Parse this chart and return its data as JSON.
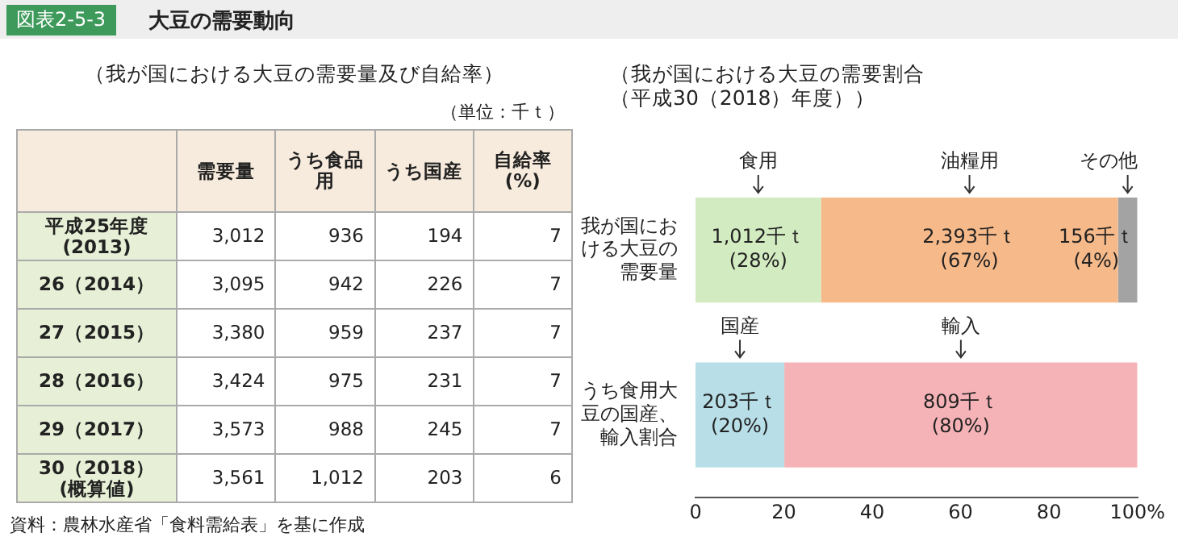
{
  "chart_data": [
    {
      "type": "heatmap",
      "title": "（我が国における大豆の需要量及び自給率）",
      "subtitle": "（単位：千ｔ）",
      "categories": [
        "需要量",
        "うち食品用",
        "うち国産",
        "自給率(%)"
      ],
      "y_categories": [
        "平成25年度(2013)",
        "26（2014）",
        "27（2015）",
        "28（2016）",
        "29（2017）",
        "30（2018）(概算値)"
      ],
      "cells": [
        [
          3012,
          936,
          194,
          7
        ],
        [
          3095,
          942,
          226,
          7
        ],
        [
          3380,
          959,
          237,
          7
        ],
        [
          3424,
          975,
          231,
          7
        ],
        [
          3573,
          988,
          245,
          7
        ],
        [
          3561,
          1012,
          203,
          6
        ]
      ],
      "cell_labels": [
        [
          "3,012",
          "936",
          "194",
          "7"
        ],
        [
          "3,095",
          "942",
          "226",
          "7"
        ],
        [
          "3,380",
          "959",
          "237",
          "7"
        ],
        [
          "3,424",
          "975",
          "231",
          "7"
        ],
        [
          "3,573",
          "988",
          "245",
          "7"
        ],
        [
          "3,561",
          "1,012",
          "203",
          "6"
        ]
      ],
      "annotations": [
        "図表2-5-3",
        "大豆の需要動向",
        "資料：農林水産省「食料需給表」を基に作成"
      ]
    },
    {
      "type": "bar",
      "orientation": "horizontal",
      "stacked": true,
      "title": "（我が国における大豆の需要割合（平成30（2018）年度））",
      "categories": [
        "我が国における大豆の需要量",
        "うち食用大豆の国産、輸入割合"
      ],
      "series": [
        {
          "name": "食用",
          "color": "#d3ebc0",
          "values": [
            28.4,
            null
          ],
          "value_labels": [
            "1,012千ｔ\n(28%)",
            null
          ]
        },
        {
          "name": "油糧用",
          "color": "#f6b98a",
          "values": [
            67.2,
            null
          ],
          "value_labels": [
            "2,393千ｔ\n(67%)",
            null
          ]
        },
        {
          "name": "その他",
          "color": "#a3a3a3",
          "values": [
            4.4,
            null
          ],
          "value_labels": [
            "156千ｔ\n(4%)",
            null
          ]
        },
        {
          "name": "国産",
          "color": "#b8dfe8",
          "values": [
            null,
            20.1
          ],
          "value_labels": [
            null,
            "203千ｔ\n(20%)"
          ]
        },
        {
          "name": "輸入",
          "color": "#f6b3b7",
          "values": [
            null,
            79.9
          ],
          "value_labels": [
            null,
            "809千ｔ\n(80%)"
          ]
        }
      ],
      "xlim": [
        0,
        100
      ],
      "xticks": [
        0,
        20,
        40,
        60,
        80,
        {
          "value": 100,
          "label": "100%"
        }
      ],
      "grid": false,
      "legend": false
    }
  ]
}
